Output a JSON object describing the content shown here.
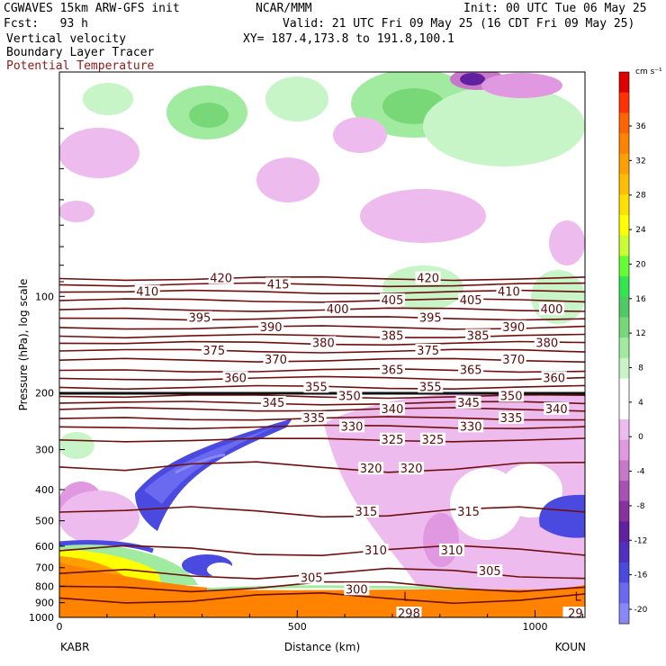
{
  "header": {
    "model": "CGWAVES 15km ARW-GFS init",
    "org": "NCAR/MMM",
    "init": "Init: 00 UTC Tue 06 May 25",
    "fcst": "Fcst:   93 h",
    "valid": "Valid: 21 UTC Fri 09 May 25 (16 CDT Fri 09 May 25)",
    "field1": "Vertical velocity",
    "field2": "Boundary Layer Tracer",
    "field3": "Potential Temperature",
    "xy": "XY= 187.4,173.8 to 191.8,100.1"
  },
  "colors": {
    "theta": "#6e0f0f",
    "frame": "#000000"
  },
  "chart_data": {
    "type": "heatmap",
    "title": "",
    "xlabel": "Distance (km)",
    "ylabel": "Pressure (hPa), log scale",
    "x_ticks": [
      {
        "value": 0,
        "label": "0"
      },
      {
        "value": 500,
        "label": "500"
      },
      {
        "value": 1000,
        "label": "1000"
      }
    ],
    "xlim": [
      0,
      1105
    ],
    "y_scale": "log",
    "ylim": [
      1000,
      20
    ],
    "y_ticks": [
      {
        "value": 100,
        "label": "100"
      },
      {
        "value": 200,
        "label": "200"
      },
      {
        "value": 300,
        "label": "300"
      },
      {
        "value": 400,
        "label": "400"
      },
      {
        "value": 500,
        "label": "500"
      },
      {
        "value": 600,
        "label": "600"
      },
      {
        "value": 700,
        "label": "700"
      },
      {
        "value": 800,
        "label": "800"
      },
      {
        "value": 900,
        "label": "900"
      },
      {
        "value": 1000,
        "label": "1000"
      }
    ],
    "endpoints": {
      "left": "KABR",
      "right": "KOUN"
    },
    "colorbar": {
      "units": "cm s⁻¹",
      "ticks": [
        "36",
        "32",
        "28",
        "24",
        "20",
        "16",
        "12",
        "8",
        "4",
        "0",
        "-4",
        "-8",
        "-12",
        "-16",
        "-20"
      ],
      "colors": [
        "#e00000",
        "#ff3200",
        "#ff6400",
        "#ff8200",
        "#ffa000",
        "#ffbe00",
        "#ffe000",
        "#ffff00",
        "#c8ff32",
        "#64ff32",
        "#32e650",
        "#50c864",
        "#78d878",
        "#a0eba0",
        "#c8f5c8",
        "#ffffff",
        "#ffffff",
        "#eebbee",
        "#e099e0",
        "#c878c8",
        "#a850b4",
        "#8830a0",
        "#6020a0",
        "#5030c0",
        "#4a4ae0",
        "#6a6af0",
        "#8888f8"
      ]
    },
    "theta_contours": [
      {
        "value": 420,
        "p": 88
      },
      {
        "value": 415,
        "p": 92
      },
      {
        "value": 410,
        "p": 97
      },
      {
        "value": 405,
        "p": 103
      },
      {
        "value": 400,
        "p": 110
      },
      {
        "value": 395,
        "p": 117
      },
      {
        "value": 390,
        "p": 125
      },
      {
        "value": 385,
        "p": 133
      },
      {
        "value": 380,
        "p": 140
      },
      {
        "value": 375,
        "p": 148
      },
      {
        "value": 370,
        "p": 158
      },
      {
        "value": 365,
        "p": 170
      },
      {
        "value": 360,
        "p": 180
      },
      {
        "value": 355,
        "p": 192
      },
      {
        "value": 350,
        "p": 205
      },
      {
        "value": 345,
        "p": 215
      },
      {
        "value": 340,
        "p": 225
      },
      {
        "value": 335,
        "p": 240
      },
      {
        "value": 330,
        "p": 255
      },
      {
        "value": 325,
        "p": 280
      },
      {
        "value": 320,
        "p": 340
      },
      {
        "value": 315,
        "p": 470
      },
      {
        "value": 310,
        "p": 620
      },
      {
        "value": 305,
        "p": 730
      },
      {
        "value": 300,
        "p": 800
      },
      {
        "value": 298,
        "p": 870
      }
    ],
    "theta_labels": [
      {
        "text": "420",
        "x": 340,
        "p": 88
      },
      {
        "text": "420",
        "x": 775,
        "p": 88
      },
      {
        "text": "415",
        "x": 460,
        "p": 92
      },
      {
        "text": "410",
        "x": 185,
        "p": 97
      },
      {
        "text": "410",
        "x": 945,
        "p": 97
      },
      {
        "text": "405",
        "x": 700,
        "p": 103
      },
      {
        "text": "405",
        "x": 865,
        "p": 103
      },
      {
        "text": "400",
        "x": 585,
        "p": 110
      },
      {
        "text": "400",
        "x": 1035,
        "p": 110
      },
      {
        "text": "395",
        "x": 295,
        "p": 117
      },
      {
        "text": "395",
        "x": 780,
        "p": 117
      },
      {
        "text": "390",
        "x": 445,
        "p": 125
      },
      {
        "text": "390",
        "x": 955,
        "p": 125
      },
      {
        "text": "385",
        "x": 700,
        "p": 133
      },
      {
        "text": "385",
        "x": 880,
        "p": 133
      },
      {
        "text": "380",
        "x": 555,
        "p": 140
      },
      {
        "text": "380",
        "x": 1025,
        "p": 140
      },
      {
        "text": "375",
        "x": 325,
        "p": 148
      },
      {
        "text": "375",
        "x": 775,
        "p": 148
      },
      {
        "text": "370",
        "x": 455,
        "p": 158
      },
      {
        "text": "370",
        "x": 955,
        "p": 158
      },
      {
        "text": "365",
        "x": 700,
        "p": 170
      },
      {
        "text": "365",
        "x": 865,
        "p": 170
      },
      {
        "text": "360",
        "x": 370,
        "p": 180
      },
      {
        "text": "360",
        "x": 1040,
        "p": 180
      },
      {
        "text": "355",
        "x": 540,
        "p": 192
      },
      {
        "text": "355",
        "x": 780,
        "p": 192
      },
      {
        "text": "350",
        "x": 610,
        "p": 205
      },
      {
        "text": "350",
        "x": 950,
        "p": 205
      },
      {
        "text": "345",
        "x": 450,
        "p": 215
      },
      {
        "text": "345",
        "x": 860,
        "p": 215
      },
      {
        "text": "340",
        "x": 700,
        "p": 225
      },
      {
        "text": "340",
        "x": 1045,
        "p": 225
      },
      {
        "text": "335",
        "x": 535,
        "p": 240
      },
      {
        "text": "335",
        "x": 950,
        "p": 240
      },
      {
        "text": "330",
        "x": 615,
        "p": 255
      },
      {
        "text": "330",
        "x": 865,
        "p": 255
      },
      {
        "text": "325",
        "x": 700,
        "p": 280
      },
      {
        "text": "325",
        "x": 785,
        "p": 280
      },
      {
        "text": "320",
        "x": 655,
        "p": 345
      },
      {
        "text": "320",
        "x": 740,
        "p": 345
      },
      {
        "text": "315",
        "x": 645,
        "p": 470
      },
      {
        "text": "315",
        "x": 860,
        "p": 470
      },
      {
        "text": "310",
        "x": 665,
        "p": 620
      },
      {
        "text": "310",
        "x": 825,
        "p": 620
      },
      {
        "text": "305",
        "x": 530,
        "p": 755
      },
      {
        "text": "305",
        "x": 905,
        "p": 720
      },
      {
        "text": "300",
        "x": 625,
        "p": 820
      },
      {
        "text": "298",
        "x": 735,
        "p": 975
      },
      {
        "text": "29",
        "x": 1085,
        "p": 975
      }
    ],
    "lows": [
      {
        "text": "L",
        "x": 730,
        "p": 860
      },
      {
        "text": "L",
        "x": 1090,
        "p": 860
      }
    ]
  }
}
